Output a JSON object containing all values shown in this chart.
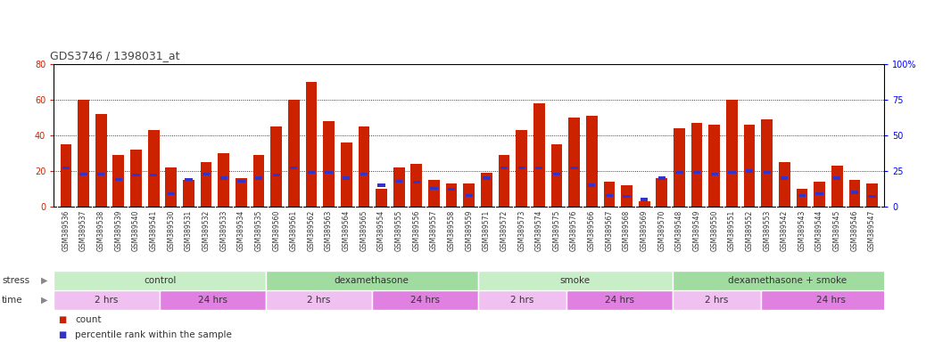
{
  "title": "GDS3746 / 1398031_at",
  "samples": [
    "GSM389536",
    "GSM389537",
    "GSM389538",
    "GSM389539",
    "GSM389540",
    "GSM389541",
    "GSM389530",
    "GSM389531",
    "GSM389532",
    "GSM389533",
    "GSM389534",
    "GSM389535",
    "GSM389560",
    "GSM389561",
    "GSM389562",
    "GSM389563",
    "GSM389564",
    "GSM389565",
    "GSM389554",
    "GSM389555",
    "GSM389556",
    "GSM389557",
    "GSM389558",
    "GSM389559",
    "GSM389571",
    "GSM389572",
    "GSM389573",
    "GSM389574",
    "GSM389575",
    "GSM389576",
    "GSM389566",
    "GSM389567",
    "GSM389568",
    "GSM389569",
    "GSM389570",
    "GSM389548",
    "GSM389549",
    "GSM389550",
    "GSM389551",
    "GSM389552",
    "GSM389553",
    "GSM389542",
    "GSM389543",
    "GSM389544",
    "GSM389545",
    "GSM389546",
    "GSM389547"
  ],
  "counts": [
    35,
    60,
    52,
    29,
    32,
    43,
    22,
    15,
    25,
    30,
    16,
    29,
    45,
    60,
    70,
    48,
    36,
    45,
    10,
    22,
    24,
    15,
    13,
    13,
    19,
    29,
    43,
    58,
    35,
    50,
    51,
    14,
    12,
    3,
    16,
    44,
    47,
    46,
    60,
    46,
    49,
    25,
    10,
    14,
    23,
    15,
    13
  ],
  "percentiles": [
    27,
    23,
    23,
    19,
    22,
    22,
    9,
    19,
    23,
    20,
    18,
    20,
    22,
    27,
    24,
    24,
    20,
    23,
    15,
    18,
    17,
    13,
    12,
    8,
    20,
    27,
    27,
    27,
    23,
    27,
    15,
    8,
    7,
    5,
    20,
    24,
    24,
    23,
    24,
    25,
    24,
    20,
    8,
    9,
    20,
    10,
    7
  ],
  "stress_groups": [
    {
      "label": "control",
      "start": 0,
      "end": 11,
      "color": "#c8eec8"
    },
    {
      "label": "dexamethasone",
      "start": 12,
      "end": 23,
      "color": "#a0dca0"
    },
    {
      "label": "smoke",
      "start": 24,
      "end": 34,
      "color": "#c8eec8"
    },
    {
      "label": "dexamethasone + smoke",
      "start": 35,
      "end": 47,
      "color": "#a0dca0"
    }
  ],
  "time_groups": [
    {
      "label": "2 hrs",
      "start": 0,
      "end": 5,
      "color": "#f0c0f0"
    },
    {
      "label": "24 hrs",
      "start": 6,
      "end": 11,
      "color": "#e080e0"
    },
    {
      "label": "2 hrs",
      "start": 12,
      "end": 17,
      "color": "#f0c0f0"
    },
    {
      "label": "24 hrs",
      "start": 18,
      "end": 23,
      "color": "#e080e0"
    },
    {
      "label": "2 hrs",
      "start": 24,
      "end": 28,
      "color": "#f0c0f0"
    },
    {
      "label": "24 hrs",
      "start": 29,
      "end": 34,
      "color": "#e080e0"
    },
    {
      "label": "2 hrs",
      "start": 35,
      "end": 39,
      "color": "#f0c0f0"
    },
    {
      "label": "24 hrs",
      "start": 40,
      "end": 47,
      "color": "#e080e0"
    }
  ],
  "bar_color": "#cc2200",
  "blue_color": "#3333cc",
  "left_ylim": [
    0,
    80
  ],
  "right_ylim": [
    0,
    100
  ],
  "left_yticks": [
    0,
    20,
    40,
    60,
    80
  ],
  "right_yticks": [
    0,
    25,
    50,
    75,
    100
  ],
  "background_color": "#ffffff",
  "xtick_bg": "#e8e8e8",
  "title_fontsize": 9,
  "tick_fontsize": 5.5,
  "row_fontsize": 7.5,
  "legend_fontsize": 7.5
}
